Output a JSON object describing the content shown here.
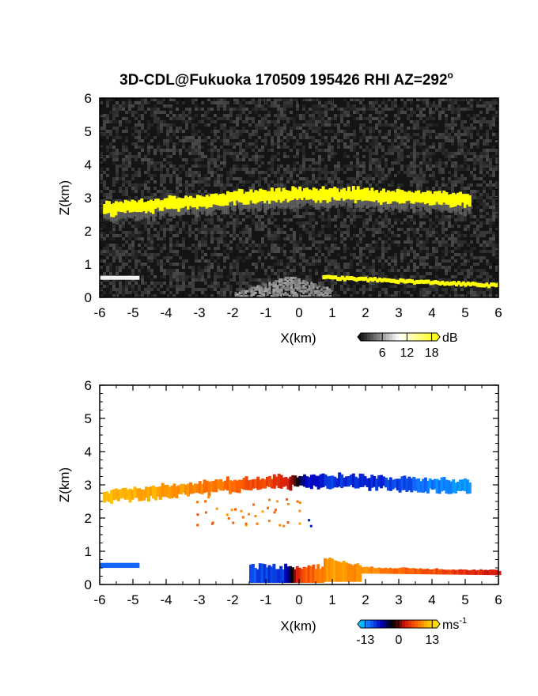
{
  "title": "3D-CDL@Fukuoka 170509 195426 RHI AZ=292",
  "title_degree": "o",
  "chart_data": [
    {
      "type": "heatmap",
      "panel": "reflectivity",
      "xlabel": "X(km)",
      "ylabel": "Z(km)",
      "xlim": [
        -6,
        6
      ],
      "ylim": [
        0,
        6
      ],
      "x_ticks": [
        "-6",
        "-5",
        "-4",
        "-3",
        "-2",
        "-1",
        "0",
        "1",
        "2",
        "3",
        "4",
        "5",
        "6"
      ],
      "y_ticks": [
        "0",
        "1",
        "2",
        "3",
        "4",
        "5",
        "6"
      ],
      "background": "#141414",
      "colorbar": {
        "unit": "dB",
        "ticks": [
          "6",
          "12",
          "18"
        ],
        "min": 0,
        "max": 20,
        "colors": [
          "#000000",
          "#ffffff",
          "#ffff00"
        ]
      },
      "features": [
        {
          "name": "upper cloud layer",
          "x_range": [
            -5.9,
            5.1
          ],
          "z_center": [
            2.65,
            2.8,
            3.0,
            3.1,
            3.1,
            3.0,
            2.95
          ],
          "z_center_x": [
            -5.9,
            -4.0,
            -2.0,
            0.0,
            1.5,
            3.5,
            5.1
          ],
          "thickness_km": 0.35,
          "color": "#ffff00"
        },
        {
          "name": "lower layer left",
          "x_range": [
            -6.0,
            -4.8
          ],
          "z": 0.58,
          "color": "#f2f2f2"
        },
        {
          "name": "lower layer right",
          "x_range": [
            0.7,
            6.0
          ],
          "z_start": 0.6,
          "z_end": 0.35,
          "color": "#ffff00"
        },
        {
          "name": "near-surface gray",
          "x_range": [
            -2.0,
            1.0
          ],
          "z_range": [
            0.0,
            0.6
          ],
          "color": "#9a9a9a"
        }
      ]
    },
    {
      "type": "heatmap",
      "panel": "doppler velocity",
      "xlabel": "X(km)",
      "ylabel": "Z(km)",
      "xlim": [
        -6,
        6
      ],
      "ylim": [
        0,
        6
      ],
      "x_ticks": [
        "-6",
        "-5",
        "-4",
        "-3",
        "-2",
        "-1",
        "0",
        "1",
        "2",
        "3",
        "4",
        "5",
        "6"
      ],
      "y_ticks": [
        "0",
        "1",
        "2",
        "3",
        "4",
        "5",
        "6"
      ],
      "colorbar": {
        "unit": "ms",
        "unit_exp": "-1",
        "ticks": [
          "-13",
          "0",
          "13"
        ],
        "min": -16,
        "max": 16,
        "colors": [
          "#00e0ff",
          "#1070ff",
          "#0000c0",
          "#000000",
          "#d01010",
          "#ff6000",
          "#ffc000",
          "#fff000"
        ]
      },
      "velocity_profile_upper": {
        "x": [
          -6,
          -4,
          -2,
          -1,
          -0.4,
          0.2,
          1,
          2,
          3,
          4,
          5
        ],
        "v": [
          11,
          10,
          7,
          5,
          4,
          -7,
          -9,
          -8,
          -10,
          -12,
          -13
        ]
      },
      "velocity_profile_lower": {
        "x": [
          -6,
          -4.8,
          -1.5,
          -0.5,
          0,
          1,
          2,
          3,
          4,
          5,
          6
        ],
        "v": [
          -11,
          -11,
          -10,
          -9,
          5,
          10,
          9,
          7,
          6,
          4,
          3
        ]
      }
    }
  ]
}
